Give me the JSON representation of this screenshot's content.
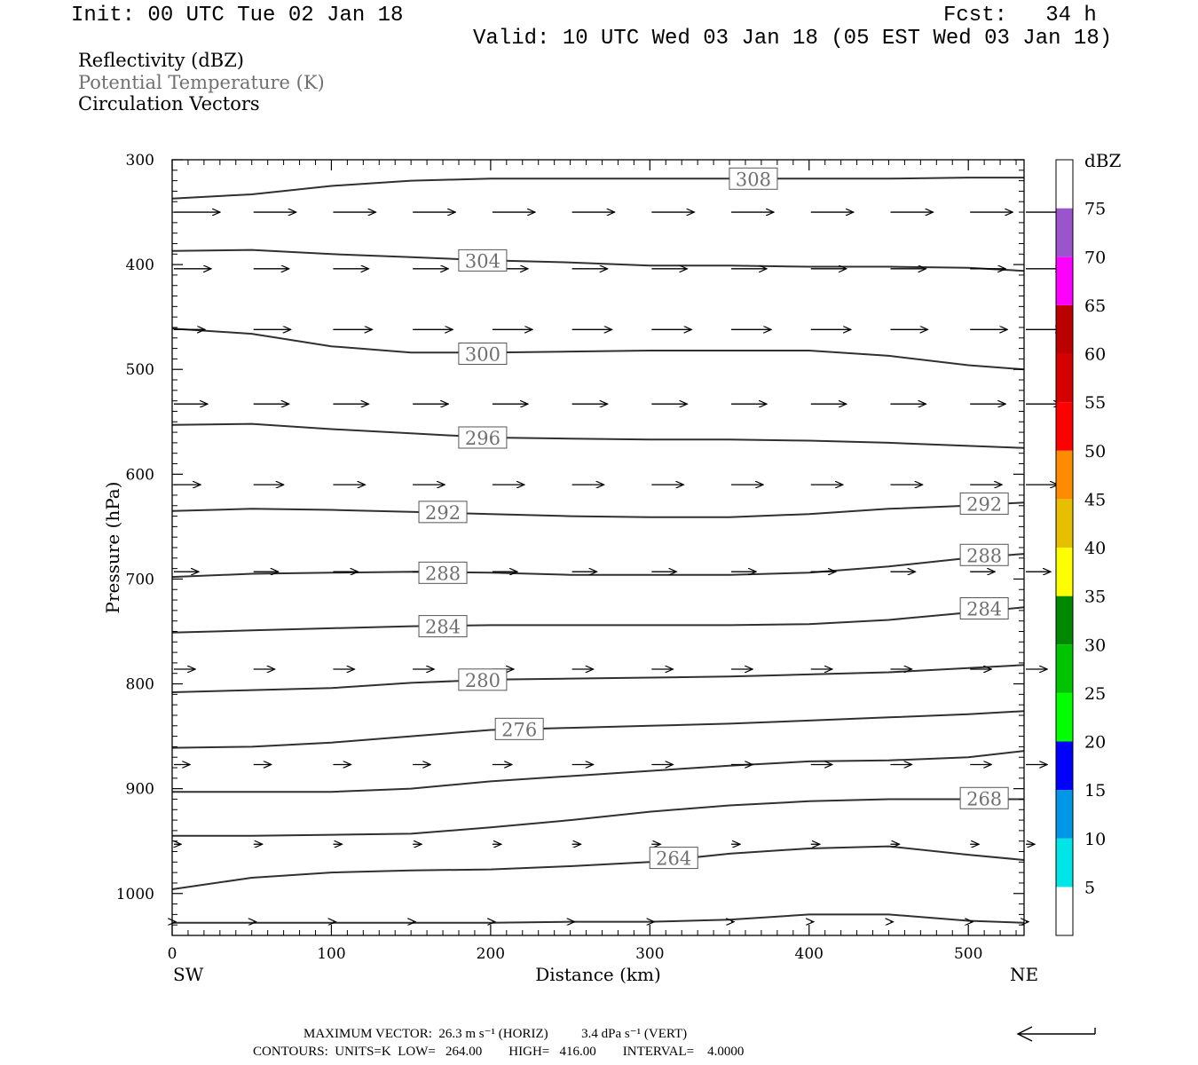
{
  "header": {
    "init": "Init: 00 UTC Tue 02 Jan 18",
    "fcst": "Fcst:   34 h",
    "valid": "Valid: 10 UTC Wed 03 Jan 18 (05 EST Wed 03 Jan 18)"
  },
  "legend": {
    "reflectivity": "Reflectivity (dBZ)",
    "potential_temperature": "Potential Temperature (K)",
    "circulation": "Circulation Vectors"
  },
  "colors": {
    "theta_label": "#707070",
    "contour": "#303030"
  },
  "chart_data": {
    "type": "line",
    "xlabel": "Distance (km)",
    "ylabel": "Pressure (hPa)",
    "xlim": [
      0,
      535
    ],
    "ylim": [
      1040,
      300
    ],
    "x_ticks": [
      0,
      100,
      200,
      300,
      400,
      500
    ],
    "y_ticks": [
      300,
      400,
      500,
      600,
      700,
      800,
      900,
      1000
    ],
    "x_left_label": "SW",
    "x_right_label": "NE",
    "colorbar": {
      "title": "dBZ",
      "levels": [
        5,
        10,
        15,
        20,
        25,
        30,
        35,
        40,
        45,
        50,
        55,
        60,
        65,
        70,
        75
      ],
      "colors": [
        "#00e5e5",
        "#0097e6",
        "#0000ff",
        "#00ff00",
        "#00c400",
        "#008800",
        "#ffff00",
        "#e5bf00",
        "#ff8c00",
        "#ff0000",
        "#d50000",
        "#bb0000",
        "#ff00ff",
        "#9a55cc",
        "#ffffff"
      ]
    },
    "isentropes": [
      {
        "theta": 308,
        "label_at": [
          [
            365,
            318
          ]
        ],
        "x": [
          0,
          50,
          100,
          150,
          200,
          250,
          300,
          350,
          400,
          450,
          500,
          535
        ],
        "p": [
          337,
          333,
          325,
          320,
          318,
          318,
          318,
          318,
          318,
          318,
          317,
          317
        ]
      },
      {
        "theta": 304,
        "label_at": [
          [
            195,
            396
          ]
        ],
        "x": [
          0,
          50,
          100,
          150,
          200,
          250,
          300,
          350,
          400,
          450,
          500,
          535
        ],
        "p": [
          387,
          386,
          390,
          393,
          396,
          398,
          401,
          401,
          402,
          402,
          403,
          406
        ]
      },
      {
        "theta": 300,
        "label_at": [
          [
            195,
            485
          ]
        ],
        "x": [
          0,
          50,
          100,
          150,
          200,
          250,
          300,
          350,
          400,
          450,
          500,
          535
        ],
        "p": [
          461,
          466,
          478,
          484,
          484,
          483,
          482,
          482,
          482,
          487,
          496,
          500
        ]
      },
      {
        "theta": 296,
        "label_at": [
          [
            195,
            565
          ]
        ],
        "x": [
          0,
          50,
          100,
          150,
          200,
          250,
          300,
          350,
          400,
          450,
          500,
          535
        ],
        "p": [
          553,
          552,
          557,
          561,
          565,
          566,
          567,
          567,
          568,
          570,
          573,
          575
        ]
      },
      {
        "theta": 292,
        "label_at": [
          [
            170,
            636
          ],
          [
            510,
            628
          ]
        ],
        "x": [
          0,
          50,
          100,
          150,
          200,
          250,
          300,
          350,
          400,
          450,
          500,
          535
        ],
        "p": [
          635,
          633,
          634,
          636,
          638,
          640,
          641,
          641,
          638,
          633,
          630,
          627
        ]
      },
      {
        "theta": 288,
        "label_at": [
          [
            170,
            694
          ],
          [
            510,
            677
          ]
        ],
        "x": [
          0,
          50,
          100,
          150,
          200,
          250,
          300,
          350,
          400,
          450,
          500,
          535
        ],
        "p": [
          698,
          695,
          694,
          693,
          694,
          696,
          696,
          696,
          694,
          688,
          680,
          676
        ]
      },
      {
        "theta": 284,
        "label_at": [
          [
            170,
            745
          ],
          [
            510,
            728
          ]
        ],
        "x": [
          0,
          50,
          100,
          150,
          200,
          250,
          300,
          350,
          400,
          450,
          500,
          535
        ],
        "p": [
          751,
          749,
          747,
          745,
          744,
          744,
          744,
          744,
          743,
          739,
          732,
          727
        ]
      },
      {
        "theta": 280,
        "label_at": [
          [
            195,
            796
          ]
        ],
        "x": [
          0,
          50,
          100,
          150,
          200,
          250,
          300,
          350,
          400,
          450,
          500,
          535
        ],
        "p": [
          808,
          806,
          804,
          799,
          796,
          795,
          794,
          793,
          791,
          789,
          785,
          782
        ]
      },
      {
        "theta": 276,
        "label_at": [
          [
            218,
            843
          ]
        ],
        "x": [
          0,
          50,
          100,
          150,
          200,
          250,
          300,
          350,
          400,
          450,
          500,
          535
        ],
        "p": [
          861,
          860,
          856,
          850,
          844,
          842,
          840,
          838,
          835,
          832,
          829,
          826
        ]
      },
      {
        "theta": 272,
        "label_at": [],
        "x": [
          0,
          50,
          100,
          150,
          200,
          250,
          300,
          350,
          400,
          450,
          500,
          535
        ],
        "p": [
          903,
          903,
          903,
          900,
          893,
          888,
          883,
          878,
          874,
          873,
          870,
          864
        ]
      },
      {
        "theta": 268,
        "label_at": [
          [
            510,
            909
          ]
        ],
        "x": [
          0,
          50,
          100,
          150,
          200,
          250,
          300,
          350,
          400,
          450,
          500,
          535
        ],
        "p": [
          945,
          945,
          944,
          943,
          937,
          930,
          922,
          916,
          912,
          910,
          910,
          910
        ]
      },
      {
        "theta": 264,
        "label_at": [
          [
            315,
            966
          ]
        ],
        "x": [
          0,
          50,
          100,
          150,
          200,
          250,
          300,
          350,
          400,
          450,
          500,
          535
        ],
        "p": [
          996,
          985,
          980,
          978,
          977,
          974,
          970,
          962,
          957,
          955,
          963,
          968
        ]
      },
      {
        "theta": 260,
        "label_at": [],
        "x": [
          0,
          50,
          100,
          150,
          200,
          250,
          300,
          350,
          400,
          450,
          500,
          535
        ],
        "p": [
          1028,
          1028,
          1028,
          1028,
          1028,
          1027,
          1027,
          1025,
          1020,
          1020,
          1026,
          1028
        ]
      }
    ],
    "vector_rows": [
      {
        "p": 350,
        "u": [
          52,
          48,
          48,
          48,
          48,
          48,
          48,
          48,
          48,
          48,
          48,
          48
        ],
        "w": [
          0,
          0,
          0,
          0,
          0,
          0,
          0,
          0,
          0,
          0,
          0,
          0
        ]
      },
      {
        "p": 404,
        "u": [
          42,
          40,
          40,
          40,
          40,
          40,
          40,
          40,
          40,
          40,
          40,
          42
        ],
        "w": [
          0,
          0,
          0,
          0,
          0,
          0,
          0,
          0,
          0,
          0,
          0,
          0
        ]
      },
      {
        "p": 462,
        "u": [
          35,
          42,
          44,
          45,
          45,
          45,
          45,
          45,
          45,
          42,
          42,
          42
        ],
        "w": [
          0,
          0,
          0,
          0,
          0,
          0,
          0,
          0,
          0,
          0,
          0,
          0
        ]
      },
      {
        "p": 533,
        "u": [
          38,
          40,
          40,
          40,
          40,
          40,
          40,
          40,
          40,
          40,
          40,
          40
        ],
        "w": [
          0,
          0,
          0,
          0,
          0,
          0,
          0,
          0,
          0,
          0,
          0,
          0
        ]
      },
      {
        "p": 610,
        "u": [
          30,
          34,
          36,
          36,
          36,
          36,
          36,
          36,
          36,
          36,
          36,
          36
        ],
        "w": [
          0,
          0,
          0,
          0,
          0,
          0,
          0,
          0,
          0,
          0,
          0,
          0
        ]
      },
      {
        "p": 693,
        "u": [
          28,
          28,
          28,
          28,
          28,
          28,
          28,
          28,
          28,
          28,
          28,
          28
        ],
        "w": [
          0,
          0,
          0,
          0,
          0,
          0,
          0,
          0,
          0,
          0,
          0,
          0
        ]
      },
      {
        "p": 786,
        "u": [
          24,
          24,
          24,
          24,
          24,
          24,
          24,
          24,
          24,
          24,
          24,
          24
        ],
        "w": [
          0,
          0,
          0,
          0,
          0,
          0,
          0,
          0,
          0,
          0,
          0,
          0
        ]
      },
      {
        "p": 877,
        "u": [
          18,
          20,
          20,
          20,
          22,
          24,
          24,
          24,
          24,
          24,
          24,
          24
        ],
        "w": [
          0,
          0,
          0,
          0,
          0,
          0,
          0,
          0,
          0,
          0,
          0,
          0
        ]
      },
      {
        "p": 953,
        "u": [
          8,
          10,
          10,
          10,
          10,
          10,
          10,
          10,
          10,
          10,
          10,
          10
        ],
        "w": [
          0,
          0,
          0,
          0,
          0,
          0,
          0,
          0,
          0,
          0,
          0,
          0
        ]
      },
      {
        "p": 1027,
        "u": [
          2,
          3,
          3,
          3,
          3,
          3,
          3,
          3,
          3,
          3,
          3,
          3
        ],
        "w": [
          0,
          0,
          0,
          0,
          0,
          0,
          0,
          0,
          0,
          0,
          0,
          0
        ]
      }
    ],
    "vector_x": [
      0,
      50,
      100,
      150,
      200,
      250,
      300,
      350,
      400,
      450,
      500,
      535
    ]
  },
  "footer": {
    "max_vector": "MAXIMUM VECTOR:  26.3 m s⁻¹ (HORIZ)          3.4 dPa s⁻¹ (VERT)",
    "contours": "CONTOURS:  UNITS=K  LOW=   264.00        HIGH=   416.00        INTERVAL=    4.0000"
  }
}
